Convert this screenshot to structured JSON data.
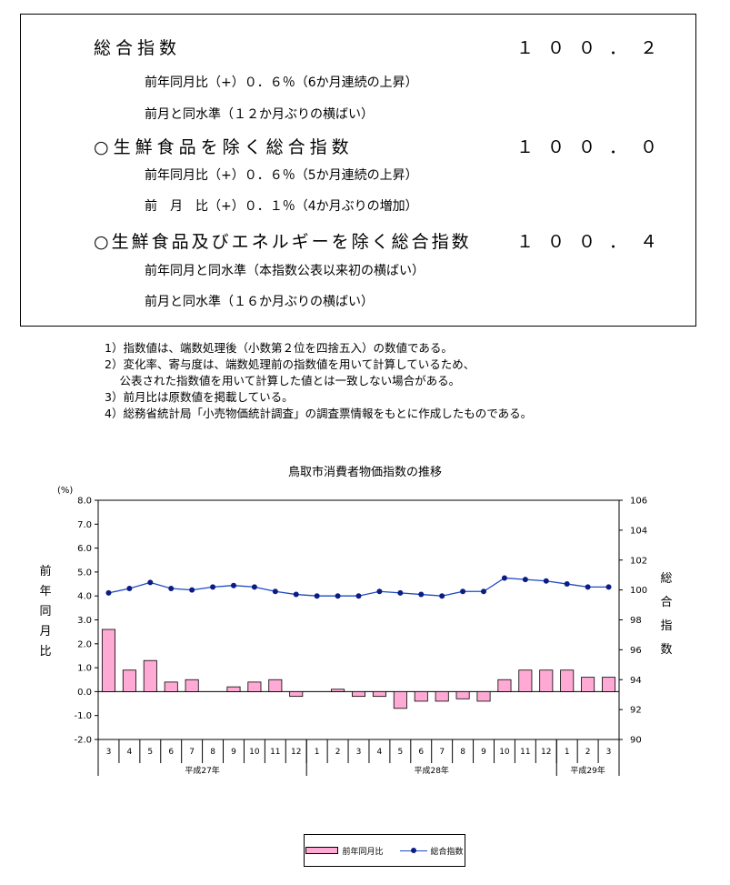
{
  "summary": {
    "items": [
      {
        "label": "総合指数",
        "value": "１００．２",
        "subs": [
          "前年同月比（+）０．６％（6か月連続の上昇）",
          "前月と同水準（１２か月ぶりの横ばい）"
        ]
      },
      {
        "label": "○生鮮食品を除く総合指数",
        "value": "１００．０",
        "subs": [
          "前年同月比（+）０．６％（5か月連続の上昇）",
          "前　月　比（+）０．１％（4か月ぶりの増加）"
        ]
      },
      {
        "label": "○生鮮食品及びエネルギーを除く総合指数",
        "value": "１００．４",
        "subs": [
          "前年同月と同水準（本指数公表以来初の横ばい）",
          "前月と同水準（１６か月ぶりの横ばい）"
        ]
      }
    ]
  },
  "notes": [
    "1）指数値は、端数処理後（小数第２位を四捨五入）の数値である。",
    "2）変化率、寄与度は、端数処理前の指数値を用いて計算しているため、",
    "　 公表された指数値を用いて計算した値とは一致しない場合がある。",
    "3）前月比は原数値を掲載している。",
    "4）総務省統計局「小売物価統計調査」の調査票情報をもとに作成したものである。"
  ],
  "chart_data": {
    "type": "bar",
    "title": "鳥取市消費者物価指数の推移",
    "categories": [
      "3",
      "4",
      "5",
      "6",
      "7",
      "8",
      "9",
      "10",
      "11",
      "12",
      "1",
      "2",
      "3",
      "4",
      "5",
      "6",
      "7",
      "8",
      "9",
      "10",
      "11",
      "12",
      "1",
      "2",
      "3"
    ],
    "year_groups": [
      {
        "label": "平成27年",
        "start": 0,
        "end": 9
      },
      {
        "label": "平成28年",
        "start": 10,
        "end": 21
      },
      {
        "label": "平成29年",
        "start": 22,
        "end": 24
      }
    ],
    "left_axis": {
      "label": "前年同月比",
      "unit": "(%)",
      "ylim": [
        -2.0,
        8.0
      ],
      "ticks": [
        "8.0",
        "7.0",
        "6.0",
        "5.0",
        "4.0",
        "3.0",
        "2.0",
        "1.0",
        "0.0",
        "-1.0",
        "-2.0"
      ]
    },
    "right_axis": {
      "label": "総合指数",
      "ylim": [
        90,
        106
      ],
      "ticks": [
        "106",
        "104",
        "102",
        "100",
        "98",
        "96",
        "94",
        "92",
        "90"
      ]
    },
    "series": [
      {
        "name": "前年同月比",
        "kind": "bar",
        "axis": "left",
        "color": "#ffaad4",
        "values": [
          2.6,
          0.9,
          1.3,
          0.4,
          0.5,
          0.0,
          0.2,
          0.4,
          0.5,
          -0.2,
          0.0,
          0.1,
          -0.2,
          -0.2,
          -0.7,
          -0.4,
          -0.4,
          -0.3,
          -0.4,
          0.5,
          0.9,
          0.9,
          0.9,
          0.6,
          0.6
        ]
      },
      {
        "name": "総合指数",
        "kind": "line",
        "axis": "right",
        "color": "#1f49c4",
        "values": [
          99.8,
          100.1,
          100.5,
          100.1,
          100.0,
          100.2,
          100.3,
          100.2,
          99.9,
          99.7,
          99.6,
          99.6,
          99.6,
          99.9,
          99.8,
          99.7,
          99.6,
          99.9,
          99.9,
          100.8,
          100.7,
          100.6,
          100.4,
          100.2,
          100.2
        ]
      }
    ]
  }
}
